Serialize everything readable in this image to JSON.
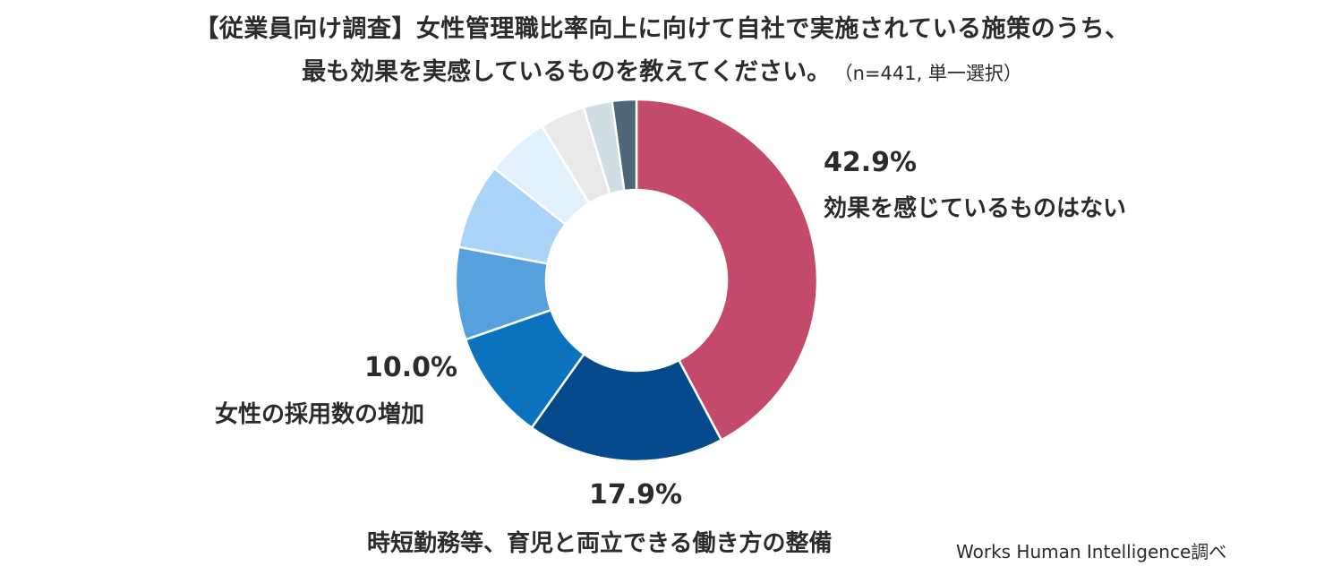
{
  "title": {
    "line1": "【従業員向け調査】女性管理職比率向上に向けて自社で実施されている施策のうち、",
    "line2": "最も効果を実感しているものを教えてください。",
    "note": "（n=441, 単一選択）"
  },
  "source": "Works Human Intelligence調べ",
  "chart_data": {
    "type": "pie",
    "donut": true,
    "slices": [
      {
        "label": "効果を感じているものはない",
        "value": 42.9,
        "value_label": "42.9%",
        "color": "#c44a6b"
      },
      {
        "label": "時短勤務等、育児と両立できる働き方の整備",
        "value": 17.9,
        "value_label": "17.9%",
        "color": "#054a8c"
      },
      {
        "label": "女性の採用数の増加",
        "value": 10.0,
        "value_label": "10.0%",
        "color": "#0b73bd"
      },
      {
        "value": 8.4,
        "color": "#57a0de"
      },
      {
        "value": 7.8,
        "color": "#a9d4f7"
      },
      {
        "value": 5.7,
        "color": "#e0f1fc"
      },
      {
        "value": 4.1,
        "color": "#e9e9e9"
      },
      {
        "value": 2.6,
        "color": "#cfdde5"
      },
      {
        "value": 2.2,
        "color": "#4f6578"
      }
    ]
  }
}
